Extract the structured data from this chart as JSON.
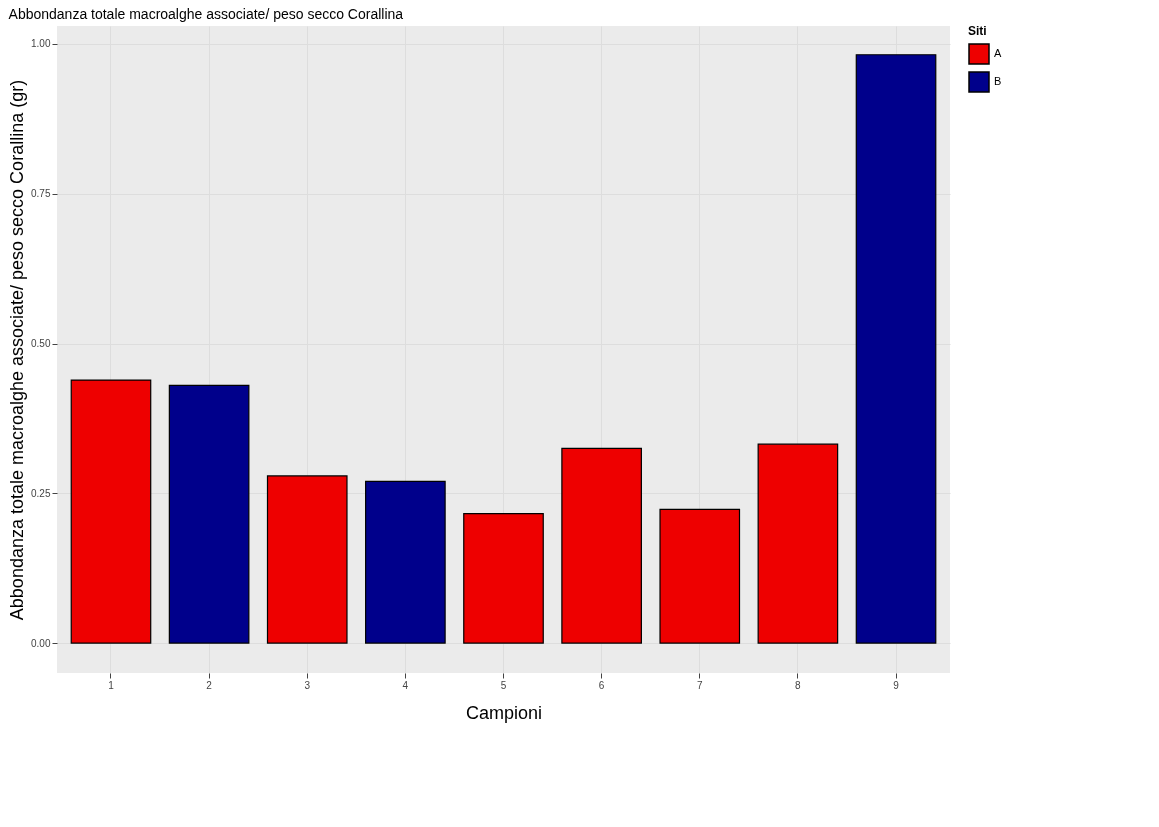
{
  "chart_data": {
    "type": "bar",
    "title": "Abbondanza totale macroalghe associate/ peso secco Corallina",
    "xlabel": "Campioni",
    "ylabel": "Abbondanza totale macroalghe associate/ peso secco Corallina (gr)",
    "legend_title": "Siti",
    "categories": [
      "1",
      "2",
      "3",
      "4",
      "5",
      "6",
      "7",
      "8",
      "9"
    ],
    "series": [
      {
        "name": "A",
        "color": "#ee0000",
        "values": [
          0.439,
          null,
          0.279,
          null,
          0.216,
          0.325,
          0.223,
          0.332,
          null
        ]
      },
      {
        "name": "B",
        "color": "#00008b",
        "values": [
          null,
          0.43,
          null,
          0.27,
          null,
          null,
          null,
          null,
          0.982
        ]
      }
    ],
    "ylim": [
      -0.05,
      1.03
    ],
    "yticks": [
      {
        "value": 0,
        "label": "0.00"
      },
      {
        "value": 0.25,
        "label": "0.25"
      },
      {
        "value": 0.5,
        "label": "0.50"
      },
      {
        "value": 0.75,
        "label": "0.75"
      },
      {
        "value": 1,
        "label": "1.00"
      }
    ],
    "grid": true,
    "legend": "right"
  }
}
